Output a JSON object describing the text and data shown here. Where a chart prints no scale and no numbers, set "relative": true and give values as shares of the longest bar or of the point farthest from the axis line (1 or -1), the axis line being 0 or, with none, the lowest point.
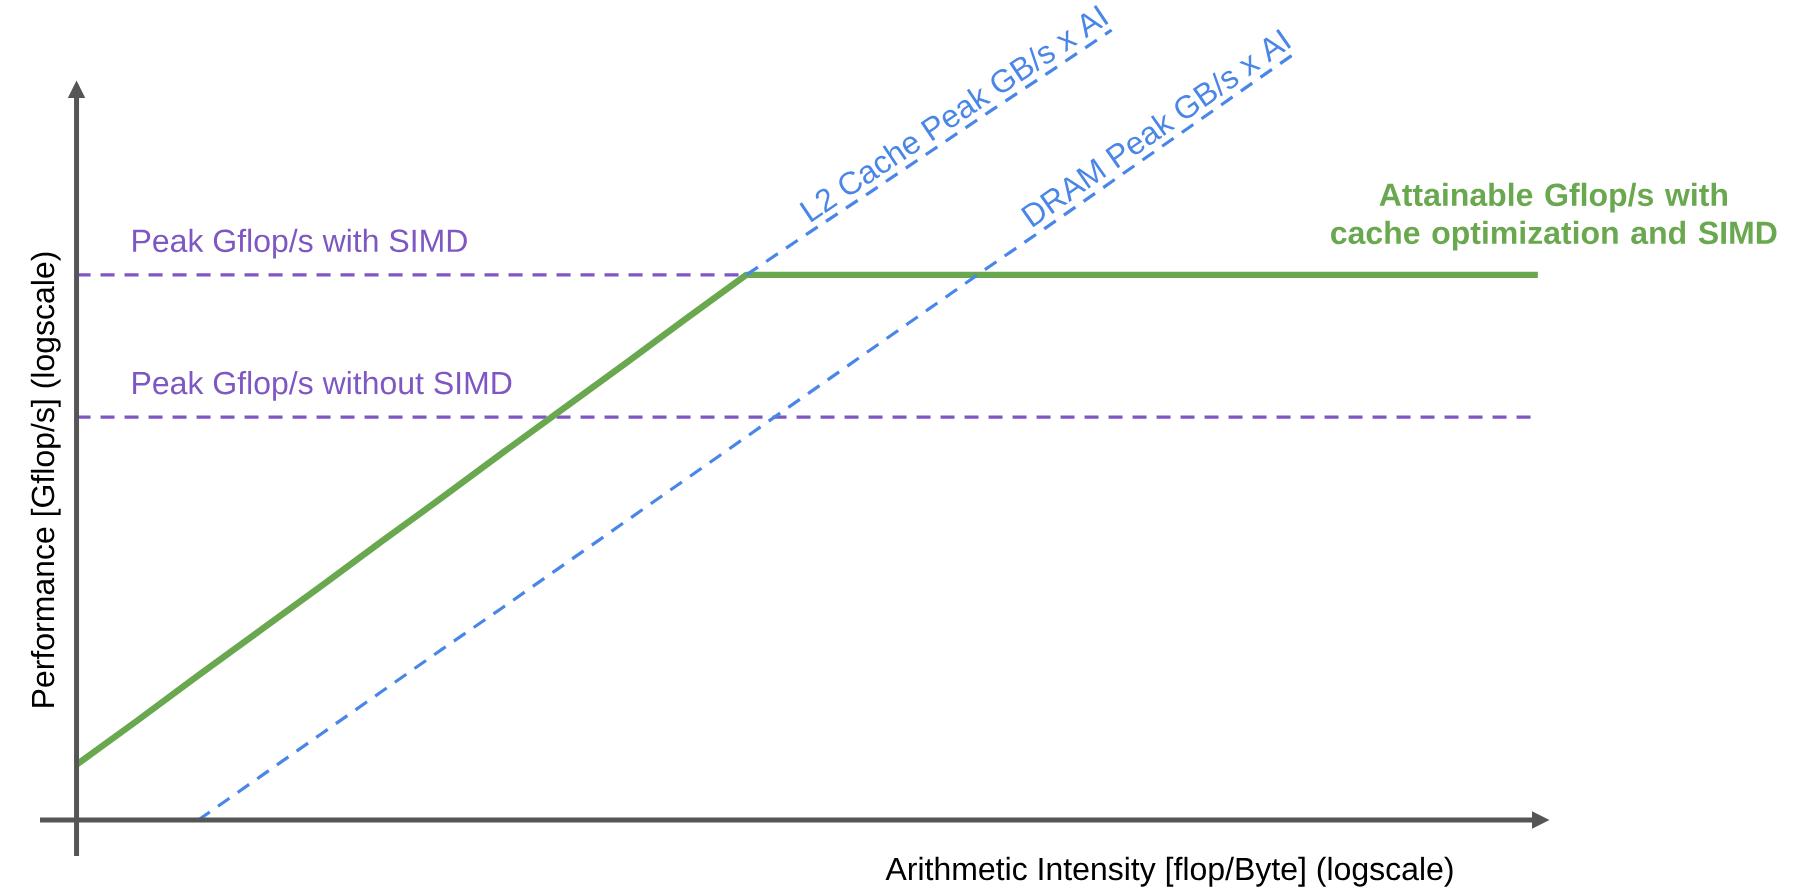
{
  "chart_data": {
    "type": "line",
    "relative": true,
    "marker": "none",
    "xlabel": "Arithmetic Intensity [flop/Byte] (logscale)",
    "ylabel": "Performance [Gflop/s] (logscale)",
    "categories": [
      null,
      null,
      null,
      null,
      null,
      null,
      null,
      null,
      null,
      null,
      null,
      null,
      null,
      null,
      null,
      null,
      null,
      null,
      null,
      null,
      null,
      null,
      null,
      null,
      null
    ],
    "series": [
      {
        "name": "Attainable Gflop/s with cache optimization and SIMD",
        "color": "#6aa84f",
        "line_style": "solid",
        "values": [
          0.07,
          0.126,
          0.183,
          0.239,
          0.295,
          0.352,
          0.408,
          0.465,
          0.521,
          0.577,
          0.634,
          0.69,
          0.69,
          0.69,
          0.69,
          0.69,
          0.69,
          0.69,
          0.69,
          0.69,
          0.69,
          0.69,
          0.69,
          0.69,
          0.69
        ]
      },
      {
        "name": "L2 Cache Peak GB/s x AI",
        "color": "#4a86e8",
        "line_style": "dashed",
        "values": [
          null,
          null,
          null,
          null,
          null,
          null,
          null,
          null,
          null,
          null,
          null,
          0.69,
          0.742,
          0.793,
          0.845,
          0.897,
          0.948,
          1.0,
          null,
          null,
          null,
          null,
          null,
          null,
          null
        ]
      },
      {
        "name": "DRAM Peak GB/s x AI",
        "color": "#4a86e8",
        "line_style": "dashed",
        "values": [
          null,
          null,
          0,
          0.054,
          0.108,
          0.162,
          0.216,
          0.269,
          0.323,
          0.377,
          0.431,
          0.485,
          0.539,
          0.593,
          0.647,
          0.701,
          0.754,
          0.808,
          0.862,
          0.916,
          0.97,
          null,
          null,
          null,
          null
        ]
      }
    ],
    "ref_lines": [
      {
        "axis": "y",
        "value": 0.69,
        "label": "Peak Gflop/s with SIMD",
        "color": "#7e57c2",
        "line_style": "dashed"
      },
      {
        "axis": "y",
        "value": 0.51,
        "label": "Peak Gflop/s without SIMD",
        "color": "#7e57c2",
        "line_style": "dashed"
      }
    ]
  }
}
